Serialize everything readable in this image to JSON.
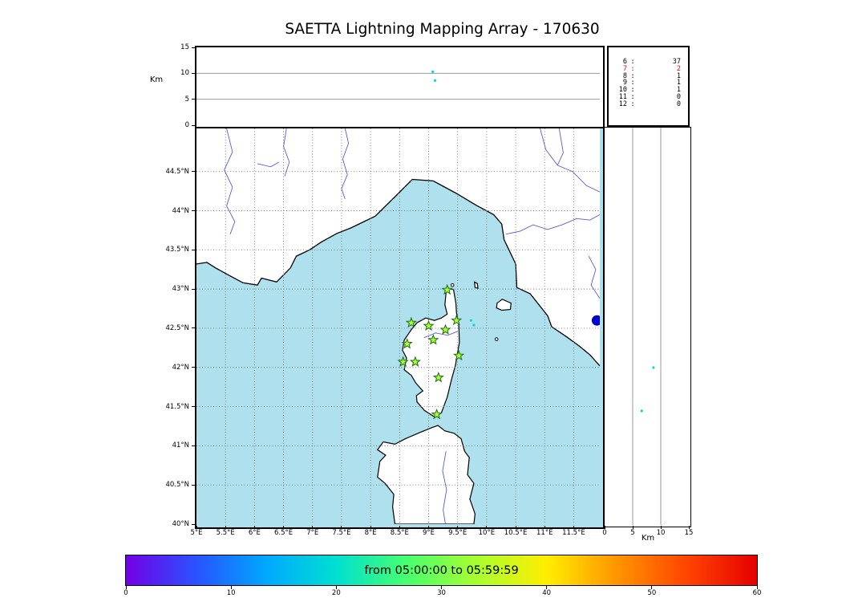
{
  "title": "SAETTA Lightning Mapping Array - 170630",
  "labels": {
    "alt_axis_top": "Km",
    "alt_axis_right": "Km"
  },
  "colors": {
    "sea": "#afe0ee",
    "land": "#ffffff",
    "coast": "#000000",
    "river": "#5b5bd6",
    "grid": "#777777",
    "panel_grid": "#999999",
    "station_fill": "#adff2f",
    "station_edge": "#1d6b1d",
    "point": "#00dcdc",
    "blue_marker": "#0000cc",
    "highlight": "#ff0000"
  },
  "chart_data": {
    "type": "scatter",
    "title": "SAETTA Lightning Mapping Array - 170630",
    "panels": {
      "alt_lon": {
        "ylabel": "Km",
        "ylim": [
          0,
          15
        ],
        "yticks": [
          0,
          5,
          10,
          15
        ],
        "grid_y": [
          5,
          10
        ],
        "points": [
          {
            "lon": 9.07,
            "alt": 10.3
          },
          {
            "lon": 9.11,
            "alt": 8.6
          }
        ]
      },
      "map": {
        "xlim": [
          5,
          11.95
        ],
        "ylim": [
          40,
          45.05
        ],
        "lon_ticks": [
          {
            "v": 5,
            "l": "5°E"
          },
          {
            "v": 5.5,
            "l": "5.5°E"
          },
          {
            "v": 6,
            "l": "6°E"
          },
          {
            "v": 6.5,
            "l": "6.5°E"
          },
          {
            "v": 7,
            "l": "7°E"
          },
          {
            "v": 7.5,
            "l": "7.5°E"
          },
          {
            "v": 8,
            "l": "8°E"
          },
          {
            "v": 8.5,
            "l": "8.5°E"
          },
          {
            "v": 9,
            "l": "9°E"
          },
          {
            "v": 9.5,
            "l": "9.5°E"
          },
          {
            "v": 10,
            "l": "10°E"
          },
          {
            "v": 10.5,
            "l": "10.5°E"
          },
          {
            "v": 11,
            "l": "11°E"
          },
          {
            "v": 11.5,
            "l": "11.5°E"
          }
        ],
        "lat_ticks": [
          {
            "v": 40,
            "l": "40°N"
          },
          {
            "v": 40.5,
            "l": "40.5°N"
          },
          {
            "v": 41,
            "l": "41°N"
          },
          {
            "v": 41.5,
            "l": "41.5°N"
          },
          {
            "v": 42,
            "l": "42°N"
          },
          {
            "v": 42.5,
            "l": "42.5°N"
          },
          {
            "v": 43,
            "l": "43°N"
          },
          {
            "v": 43.5,
            "l": "43.5°N"
          },
          {
            "v": 44,
            "l": "44°N"
          },
          {
            "v": 44.5,
            "l": "44.5°N"
          }
        ],
        "grid_lon": [
          5.5,
          6,
          6.5,
          7,
          7.5,
          8,
          8.5,
          9,
          9.5,
          10,
          10.5,
          11,
          11.5
        ],
        "grid_lat": [
          40.5,
          41,
          41.5,
          42,
          42.5,
          43,
          43.5,
          44,
          44.5
        ],
        "stations": [
          [
            9.32,
            42.99
          ],
          [
            8.7,
            42.57
          ],
          [
            9.0,
            42.53
          ],
          [
            9.29,
            42.48
          ],
          [
            9.48,
            42.6
          ],
          [
            8.63,
            42.3
          ],
          [
            9.08,
            42.35
          ],
          [
            8.56,
            42.07
          ],
          [
            8.77,
            42.07
          ],
          [
            9.52,
            42.15
          ],
          [
            9.17,
            41.87
          ],
          [
            9.14,
            41.4
          ]
        ],
        "points": [
          [
            9.73,
            42.6
          ],
          [
            9.78,
            42.54
          ]
        ],
        "blue_marker": {
          "lon": 11.9,
          "lat": 42.6
        }
      },
      "alt_lat": {
        "xlabel": "Km",
        "xlim": [
          0,
          15
        ],
        "xticks": [
          0,
          5,
          10,
          15
        ],
        "grid_x": [
          5,
          10
        ],
        "points": [
          {
            "alt": 8.7,
            "lat": 42.0
          },
          {
            "alt": 6.6,
            "lat": 41.45
          }
        ]
      }
    },
    "histogram": {
      "rows": [
        {
          "alt": "6",
          "count": "37",
          "highlight": false
        },
        {
          "alt": "7",
          "count": "2",
          "highlight": true
        },
        {
          "alt": "8",
          "count": "1",
          "highlight": false
        },
        {
          "alt": "9",
          "count": "1",
          "highlight": false
        },
        {
          "alt": "10",
          "count": "1",
          "highlight": false
        },
        {
          "alt": "11",
          "count": "0",
          "highlight": false
        },
        {
          "alt": "12",
          "count": "0",
          "highlight": false
        }
      ]
    },
    "colorbar": {
      "label": "from 05:00:00 to 05:59:59",
      "range": [
        0,
        60
      ],
      "ticks": [
        0,
        10,
        20,
        30,
        40,
        50,
        60
      ],
      "gradient": [
        "#7300e6",
        "#2952ff",
        "#00a8ff",
        "#00e0d0",
        "#47ff70",
        "#a8ff30",
        "#ffee00",
        "#ff9500",
        "#ff4400",
        "#e60000"
      ]
    }
  },
  "geo": {
    "mainland_coast": [
      [
        5.0,
        43.32
      ],
      [
        5.18,
        43.34
      ],
      [
        5.33,
        43.27
      ],
      [
        5.55,
        43.18
      ],
      [
        5.8,
        43.08
      ],
      [
        6.05,
        43.05
      ],
      [
        6.12,
        43.14
      ],
      [
        6.38,
        43.09
      ],
      [
        6.62,
        43.27
      ],
      [
        6.72,
        43.42
      ],
      [
        6.95,
        43.5
      ],
      [
        7.15,
        43.6
      ],
      [
        7.42,
        43.71
      ],
      [
        7.66,
        43.78
      ],
      [
        8.08,
        43.93
      ],
      [
        8.45,
        44.2
      ],
      [
        8.72,
        44.4
      ],
      [
        9.08,
        44.38
      ],
      [
        9.48,
        44.22
      ],
      [
        9.82,
        44.07
      ],
      [
        10.12,
        43.95
      ],
      [
        10.26,
        43.83
      ],
      [
        10.3,
        43.63
      ],
      [
        10.5,
        43.32
      ],
      [
        10.52,
        43.02
      ],
      [
        10.75,
        42.94
      ],
      [
        11.05,
        42.66
      ],
      [
        11.12,
        42.52
      ],
      [
        11.38,
        42.39
      ],
      [
        11.6,
        42.27
      ],
      [
        11.78,
        42.16
      ],
      [
        11.95,
        42.02
      ]
    ],
    "islands": {
      "corsica": [
        [
          9.345,
          43.01
        ],
        [
          9.43,
          42.99
        ],
        [
          9.47,
          42.82
        ],
        [
          9.48,
          42.7
        ],
        [
          9.52,
          42.55
        ],
        [
          9.53,
          42.32
        ],
        [
          9.46,
          42.02
        ],
        [
          9.4,
          41.86
        ],
        [
          9.32,
          41.62
        ],
        [
          9.22,
          41.42
        ],
        [
          9.1,
          41.37
        ],
        [
          8.93,
          41.45
        ],
        [
          8.8,
          41.56
        ],
        [
          8.79,
          41.64
        ],
        [
          8.9,
          41.7
        ],
        [
          8.78,
          41.8
        ],
        [
          8.7,
          41.9
        ],
        [
          8.58,
          41.97
        ],
        [
          8.62,
          42.12
        ],
        [
          8.55,
          42.22
        ],
        [
          8.58,
          42.35
        ],
        [
          8.7,
          42.48
        ],
        [
          8.8,
          42.57
        ],
        [
          8.95,
          42.63
        ],
        [
          9.1,
          42.6
        ],
        [
          9.22,
          42.63
        ],
        [
          9.32,
          42.68
        ],
        [
          9.28,
          42.8
        ],
        [
          9.3,
          42.95
        ]
      ],
      "sardinia": [
        [
          8.42,
          40.0
        ],
        [
          8.38,
          40.22
        ],
        [
          8.4,
          40.38
        ],
        [
          8.25,
          40.52
        ],
        [
          8.12,
          40.6
        ],
        [
          8.16,
          40.8
        ],
        [
          8.26,
          40.88
        ],
        [
          8.12,
          40.95
        ],
        [
          8.22,
          41.05
        ],
        [
          8.42,
          41.02
        ],
        [
          8.6,
          41.09
        ],
        [
          8.85,
          41.17
        ],
        [
          9.05,
          41.23
        ],
        [
          9.16,
          41.26
        ],
        [
          9.28,
          41.19
        ],
        [
          9.44,
          41.16
        ],
        [
          9.56,
          41.09
        ],
        [
          9.62,
          40.93
        ],
        [
          9.7,
          40.85
        ],
        [
          9.67,
          40.63
        ],
        [
          9.78,
          40.52
        ],
        [
          9.71,
          40.32
        ],
        [
          9.8,
          40.13
        ],
        [
          9.78,
          40.0
        ]
      ],
      "elba": [
        [
          10.18,
          42.82
        ],
        [
          10.27,
          42.87
        ],
        [
          10.42,
          42.82
        ],
        [
          10.41,
          42.74
        ],
        [
          10.26,
          42.73
        ],
        [
          10.17,
          42.76
        ]
      ],
      "capraia": [
        [
          9.79,
          43.09
        ],
        [
          9.84,
          43.07
        ],
        [
          9.85,
          43.01
        ],
        [
          9.8,
          43.02
        ]
      ]
    },
    "islets": [
      [
        10.17,
        42.36
      ],
      [
        9.41,
        43.05
      ]
    ],
    "rivers": [
      [
        [
          5.52,
          45.05
        ],
        [
          5.62,
          44.75
        ],
        [
          5.48,
          44.52
        ],
        [
          5.62,
          44.3
        ],
        [
          5.52,
          44.06
        ],
        [
          5.66,
          43.86
        ],
        [
          5.58,
          43.7
        ]
      ],
      [
        [
          6.55,
          45.05
        ],
        [
          6.5,
          44.82
        ],
        [
          6.6,
          44.62
        ],
        [
          6.52,
          44.44
        ]
      ],
      [
        [
          7.56,
          45.05
        ],
        [
          7.62,
          44.86
        ],
        [
          7.52,
          44.66
        ],
        [
          7.6,
          44.46
        ],
        [
          7.5,
          44.28
        ],
        [
          7.56,
          44.15
        ]
      ],
      [
        [
          10.33,
          43.7
        ],
        [
          10.58,
          43.74
        ],
        [
          10.8,
          43.82
        ],
        [
          11.05,
          43.76
        ],
        [
          11.3,
          43.82
        ],
        [
          11.55,
          43.9
        ],
        [
          11.78,
          43.88
        ],
        [
          11.95,
          43.95
        ]
      ],
      [
        [
          10.92,
          45.05
        ],
        [
          11.02,
          44.78
        ],
        [
          11.22,
          44.58
        ],
        [
          11.48,
          44.5
        ],
        [
          11.72,
          44.32
        ],
        [
          11.95,
          44.24
        ]
      ],
      [
        [
          11.25,
          45.05
        ],
        [
          11.32,
          44.74
        ],
        [
          11.22,
          44.58
        ]
      ],
      [
        [
          11.95,
          42.88
        ],
        [
          11.8,
          43.05
        ],
        [
          11.88,
          43.25
        ],
        [
          11.76,
          43.42
        ]
      ],
      [
        [
          8.92,
          42.38
        ],
        [
          9.12,
          42.44
        ],
        [
          9.33,
          42.41
        ],
        [
          9.5,
          42.46
        ]
      ],
      [
        [
          9.3,
          40.93
        ],
        [
          9.24,
          40.68
        ],
        [
          9.31,
          40.44
        ],
        [
          9.25,
          40.18
        ],
        [
          9.29,
          40.0
        ]
      ],
      [
        [
          6.05,
          44.6
        ],
        [
          6.28,
          44.56
        ],
        [
          6.42,
          44.62
        ]
      ]
    ]
  }
}
